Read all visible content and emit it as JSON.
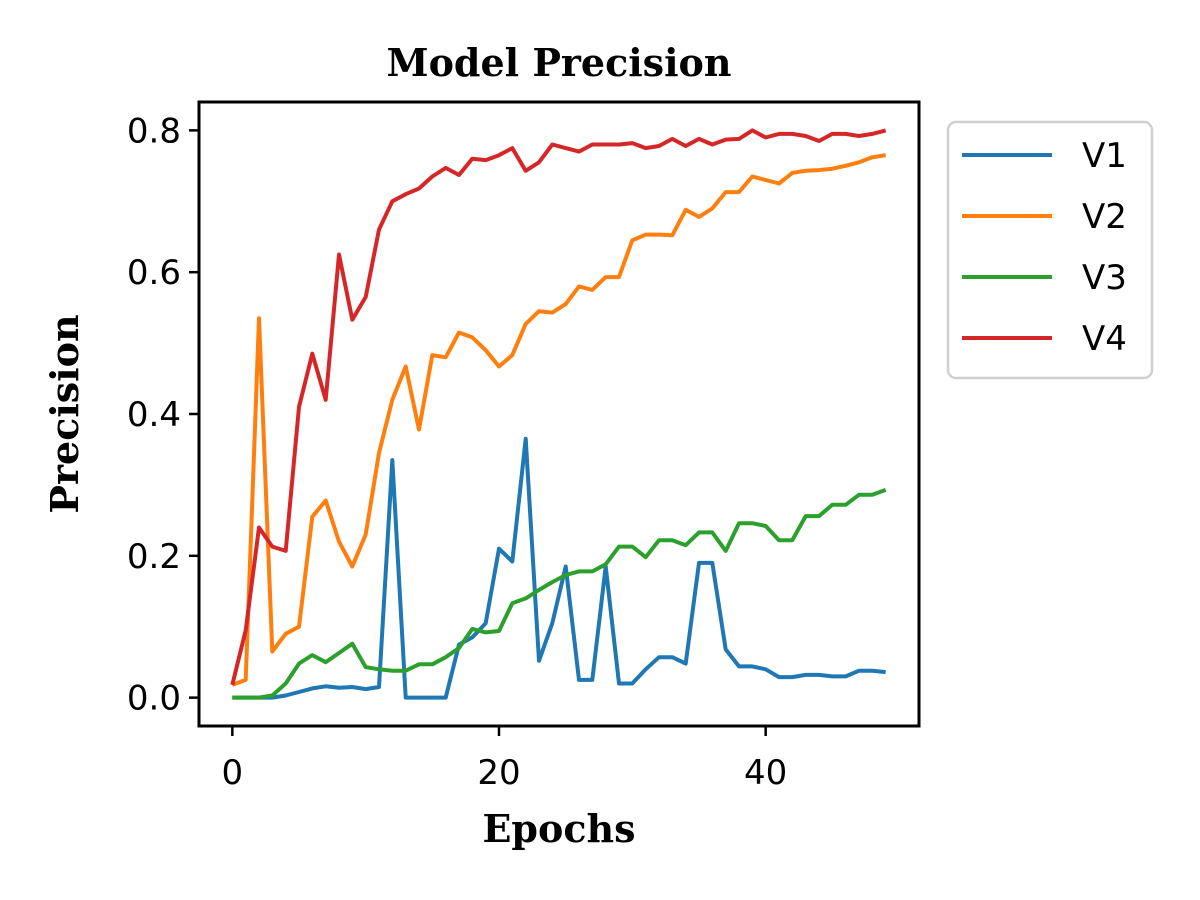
{
  "chart_data": {
    "type": "line",
    "title": "Model Precision",
    "xlabel": "Epochs",
    "ylabel": "Precision",
    "xlim": [
      -2.5,
      51.5
    ],
    "ylim": [
      -0.04,
      0.84
    ],
    "xticks": [
      0,
      20,
      40
    ],
    "xtick_labels": [
      "0",
      "20",
      "40"
    ],
    "yticks": [
      0.0,
      0.2,
      0.4,
      0.6,
      0.8
    ],
    "ytick_labels": [
      "0.0",
      "0.2",
      "0.4",
      "0.6",
      "0.8"
    ],
    "grid": false,
    "legend_position": "outside-upper-right",
    "x": [
      0,
      1,
      2,
      3,
      4,
      5,
      6,
      7,
      8,
      9,
      10,
      11,
      12,
      13,
      14,
      15,
      16,
      17,
      18,
      19,
      20,
      21,
      22,
      23,
      24,
      25,
      26,
      27,
      28,
      29,
      30,
      31,
      32,
      33,
      34,
      35,
      36,
      37,
      38,
      39,
      40,
      41,
      42,
      43,
      44,
      45,
      46,
      47,
      48,
      49
    ],
    "series": [
      {
        "name": "V1",
        "color": "#1f77b4",
        "values": [
          0.0,
          0.0,
          0.0,
          0.0,
          0.003,
          0.008,
          0.013,
          0.016,
          0.014,
          0.015,
          0.012,
          0.015,
          0.335,
          0.0,
          0.0,
          0.0,
          0.0,
          0.075,
          0.085,
          0.105,
          0.21,
          0.192,
          0.365,
          0.052,
          0.105,
          0.185,
          0.025,
          0.025,
          0.185,
          0.02,
          0.02,
          0.04,
          0.057,
          0.057,
          0.048,
          0.19,
          0.19,
          0.068,
          0.044,
          0.044,
          0.04,
          0.029,
          0.029,
          0.032,
          0.032,
          0.03,
          0.03,
          0.038,
          0.038,
          0.036
        ]
      },
      {
        "name": "V2",
        "color": "#ff7f0e",
        "values": [
          0.018,
          0.025,
          0.535,
          0.065,
          0.09,
          0.1,
          0.255,
          0.278,
          0.22,
          0.185,
          0.23,
          0.345,
          0.42,
          0.467,
          0.378,
          0.483,
          0.48,
          0.515,
          0.508,
          0.49,
          0.467,
          0.483,
          0.527,
          0.545,
          0.543,
          0.555,
          0.58,
          0.575,
          0.593,
          0.593,
          0.645,
          0.653,
          0.653,
          0.652,
          0.688,
          0.678,
          0.69,
          0.713,
          0.713,
          0.735,
          0.73,
          0.725,
          0.74,
          0.743,
          0.744,
          0.746,
          0.75,
          0.755,
          0.762,
          0.765
        ]
      },
      {
        "name": "V3",
        "color": "#2ca02c",
        "values": [
          0.0,
          0.0,
          0.0,
          0.003,
          0.02,
          0.048,
          0.06,
          0.05,
          0.063,
          0.076,
          0.043,
          0.04,
          0.038,
          0.038,
          0.047,
          0.047,
          0.057,
          0.07,
          0.097,
          0.092,
          0.094,
          0.133,
          0.14,
          0.152,
          0.163,
          0.173,
          0.178,
          0.178,
          0.188,
          0.213,
          0.213,
          0.198,
          0.222,
          0.222,
          0.215,
          0.233,
          0.233,
          0.207,
          0.246,
          0.246,
          0.242,
          0.222,
          0.222,
          0.256,
          0.256,
          0.272,
          0.272,
          0.286,
          0.286,
          0.293
        ]
      },
      {
        "name": "V4",
        "color": "#d62728",
        "values": [
          0.018,
          0.095,
          0.24,
          0.213,
          0.207,
          0.41,
          0.485,
          0.42,
          0.625,
          0.533,
          0.565,
          0.66,
          0.7,
          0.71,
          0.718,
          0.735,
          0.747,
          0.737,
          0.76,
          0.758,
          0.765,
          0.775,
          0.743,
          0.755,
          0.78,
          0.775,
          0.77,
          0.78,
          0.78,
          0.78,
          0.782,
          0.775,
          0.778,
          0.788,
          0.778,
          0.788,
          0.78,
          0.787,
          0.788,
          0.8,
          0.79,
          0.795,
          0.795,
          0.792,
          0.785,
          0.795,
          0.795,
          0.792,
          0.795,
          0.8
        ]
      }
    ]
  }
}
